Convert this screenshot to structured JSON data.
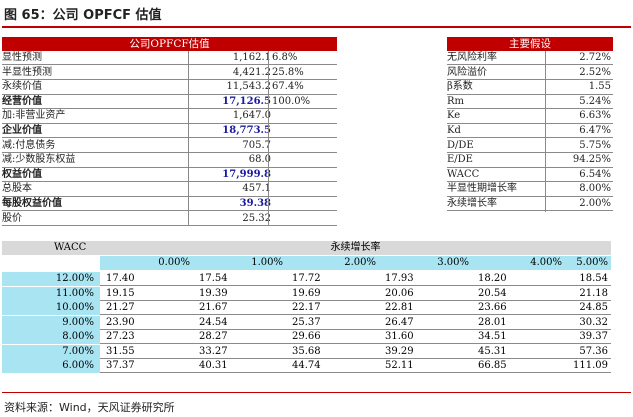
{
  "title": "图 65：公司 OPFCF 估值",
  "source": "资料来源：Wind，天风证券研究所",
  "left_header": "公司OPFCF估值",
  "right_header": "主要假设",
  "left_rows": [
    {
      "label": "显性预测",
      "value": "1,162.1",
      "pct": "6.8%",
      "bold": false
    },
    {
      "label": "半显性预测",
      "value": "4,421.2",
      "pct": "25.8%",
      "bold": false
    },
    {
      "label": "永续价值",
      "value": "11,543.2",
      "pct": "67.4%",
      "bold": false
    },
    {
      "label": "经营价值",
      "value": "17,126.5",
      "pct": "100.0%",
      "bold": true
    },
    {
      "label": "加:非营业资产",
      "value": "1,647.0",
      "pct": "",
      "bold": false
    },
    {
      "label": "企业价值",
      "value": "18,773.5",
      "pct": "",
      "bold": true
    },
    {
      "label": "减:付息债务",
      "value": "705.7",
      "pct": "",
      "bold": false
    },
    {
      "label": "减:少数股东权益",
      "value": "68.0",
      "pct": "",
      "bold": false
    },
    {
      "label": "权益价值",
      "value": "17,999.8",
      "pct": "",
      "bold": true
    },
    {
      "label": "总股本",
      "value": "457.1",
      "pct": "",
      "bold": false
    },
    {
      "label": "每股权益价值",
      "value": "39.38",
      "pct": "",
      "bold": true
    },
    {
      "label": "股价",
      "value": "25.32",
      "pct": "",
      "bold": false
    }
  ],
  "right_rows": [
    {
      "label": "无风险利率",
      "value": "2.72%"
    },
    {
      "label": "风险溢价",
      "value": "2.52%"
    },
    {
      "label": "β系数",
      "value": "1.55"
    },
    {
      "label": "Rm",
      "value": "5.24%"
    },
    {
      "label": "Ke",
      "value": "6.63%"
    },
    {
      "label": "Kd",
      "value": "6.47%"
    },
    {
      "label": "D/DE",
      "value": "5.75%"
    },
    {
      "label": "E/DE",
      "value": "94.25%"
    },
    {
      "label": "WACC",
      "value": "6.54%"
    },
    {
      "label": "半显性期增长率",
      "value": "8.00%"
    },
    {
      "label": "永续增长率",
      "value": "2.00%"
    }
  ],
  "sensitivity": {
    "corner_label": "WACC",
    "header_label": "永续增长率",
    "growth_rates": [
      "0.00%",
      "1.00%",
      "2.00%",
      "3.00%",
      "4.00%",
      "5.00%"
    ],
    "rows": [
      {
        "wacc": "12.00%",
        "values": [
          "17.40",
          "17.54",
          "17.72",
          "17.93",
          "18.20",
          "18.54"
        ]
      },
      {
        "wacc": "11.00%",
        "values": [
          "19.15",
          "19.39",
          "19.69",
          "20.06",
          "20.54",
          "21.18"
        ]
      },
      {
        "wacc": "10.00%",
        "values": [
          "21.27",
          "21.67",
          "22.17",
          "22.81",
          "23.66",
          "24.85"
        ]
      },
      {
        "wacc": "9.00%",
        "values": [
          "23.90",
          "24.54",
          "25.37",
          "26.47",
          "28.01",
          "30.32"
        ]
      },
      {
        "wacc": "8.00%",
        "values": [
          "27.23",
          "28.27",
          "29.66",
          "31.60",
          "34.51",
          "39.37"
        ]
      },
      {
        "wacc": "7.00%",
        "values": [
          "31.55",
          "33.27",
          "35.68",
          "39.29",
          "45.31",
          "57.36"
        ]
      },
      {
        "wacc": "6.00%",
        "values": [
          "37.37",
          "40.31",
          "44.74",
          "52.11",
          "66.85",
          "111.09"
        ]
      }
    ]
  }
}
